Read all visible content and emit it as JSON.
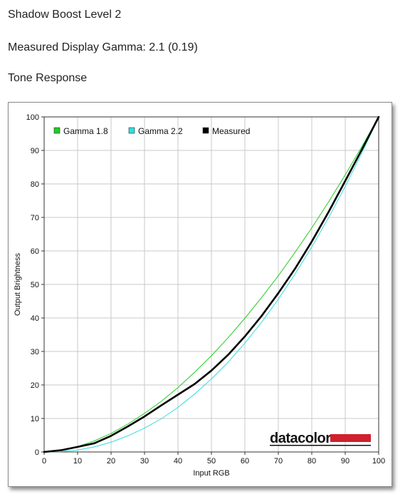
{
  "header": {
    "title": "Shadow Boost Level 2",
    "gamma_line": "Measured Display Gamma: 2.1 (0.19)",
    "section": "Tone Response"
  },
  "brand": {
    "name": "datacolor",
    "bar_color": "#d0202e"
  },
  "chart_data": {
    "type": "line",
    "title": "",
    "xlabel": "Input RGB",
    "ylabel": "Output Brightness",
    "xlim": [
      0,
      100
    ],
    "ylim": [
      0,
      100
    ],
    "xticks": [
      0,
      10,
      20,
      30,
      40,
      50,
      60,
      70,
      80,
      90,
      100
    ],
    "yticks": [
      0,
      10,
      20,
      30,
      40,
      50,
      60,
      70,
      80,
      90,
      100
    ],
    "grid": true,
    "legend_position": "top-left",
    "series": [
      {
        "name": "Gamma 1.8",
        "color": "#22cc22",
        "x": [
          0,
          5,
          10,
          15,
          20,
          25,
          30,
          35,
          40,
          45,
          50,
          55,
          60,
          65,
          70,
          75,
          80,
          85,
          90,
          95,
          100
        ],
        "y": [
          0,
          0.5,
          1.6,
          3.3,
          5.5,
          8.3,
          11.5,
          15.1,
          19.2,
          23.8,
          28.7,
          34.1,
          39.9,
          46.1,
          52.6,
          59.6,
          66.9,
          74.6,
          82.7,
          91.2,
          100
        ]
      },
      {
        "name": "Gamma 2.2",
        "color": "#33dddd",
        "x": [
          0,
          5,
          10,
          15,
          20,
          25,
          30,
          35,
          40,
          45,
          50,
          55,
          60,
          65,
          70,
          75,
          80,
          85,
          90,
          95,
          100
        ],
        "y": [
          0,
          0.1,
          0.6,
          1.5,
          2.9,
          4.8,
          7.1,
          9.9,
          13.3,
          17.3,
          21.8,
          26.8,
          32.5,
          38.7,
          45.6,
          53.1,
          61.2,
          69.9,
          79.3,
          89.3,
          100
        ]
      },
      {
        "name": "Measured",
        "color": "#000000",
        "x": [
          0,
          5,
          10,
          15,
          20,
          25,
          30,
          35,
          40,
          45,
          50,
          55,
          60,
          65,
          70,
          75,
          80,
          85,
          90,
          95,
          100
        ],
        "y": [
          0,
          0.5,
          1.5,
          2.6,
          4.8,
          7.6,
          10.6,
          13.9,
          17.1,
          20.3,
          24.3,
          29.0,
          34.5,
          40.6,
          47.4,
          54.7,
          62.8,
          71.6,
          80.9,
          90.3,
          100
        ]
      }
    ]
  }
}
